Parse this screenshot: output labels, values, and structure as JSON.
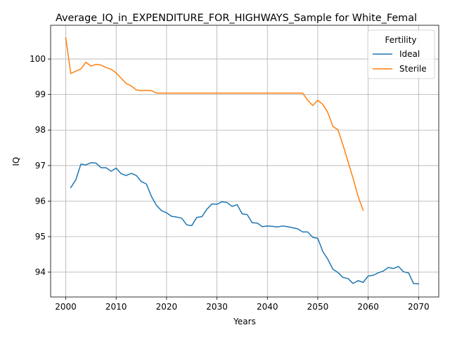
{
  "chart_data": {
    "type": "line",
    "title": "Average_IQ_in_EXPENDITURE_FOR_HIGHWAYS_Sample for White_Femal",
    "xlabel": "Years",
    "ylabel": "IQ",
    "xlim": [
      1997,
      2074
    ],
    "ylim": [
      93.3,
      100.95
    ],
    "xticks": [
      2000,
      2010,
      2020,
      2030,
      2040,
      2050,
      2060,
      2070
    ],
    "yticks": [
      94,
      95,
      96,
      97,
      98,
      99,
      100
    ],
    "grid": true,
    "legend": {
      "title": "Fertility",
      "placement": "top-right"
    },
    "series": [
      {
        "name": "Ideal",
        "color": "#1f77b4",
        "x": [
          2001,
          2002,
          2003,
          2004,
          2005,
          2006,
          2007,
          2008,
          2009,
          2010,
          2011,
          2012,
          2013,
          2014,
          2015,
          2016,
          2017,
          2018,
          2019,
          2020,
          2021,
          2022,
          2023,
          2024,
          2025,
          2026,
          2027,
          2028,
          2029,
          2030,
          2031,
          2032,
          2033,
          2034,
          2035,
          2036,
          2037,
          2038,
          2039,
          2040,
          2041,
          2042,
          2043,
          2044,
          2045,
          2046,
          2047,
          2048,
          2049,
          2050,
          2051,
          2052,
          2053,
          2054,
          2055,
          2056,
          2057,
          2058,
          2059,
          2060,
          2061,
          2062,
          2063,
          2064,
          2065,
          2066,
          2067,
          2068,
          2069,
          2070
        ],
        "values": [
          96.38,
          96.6,
          97.04,
          97.02,
          97.08,
          97.07,
          96.94,
          96.94,
          96.84,
          96.93,
          96.77,
          96.72,
          96.78,
          96.72,
          96.55,
          96.48,
          96.13,
          95.88,
          95.73,
          95.67,
          95.57,
          95.55,
          95.52,
          95.33,
          95.31,
          95.54,
          95.56,
          95.77,
          95.92,
          95.91,
          95.98,
          95.96,
          95.85,
          95.9,
          95.64,
          95.62,
          95.39,
          95.38,
          95.28,
          95.3,
          95.29,
          95.27,
          95.3,
          95.28,
          95.25,
          95.22,
          95.13,
          95.13,
          94.98,
          94.95,
          94.58,
          94.36,
          94.08,
          93.99,
          93.85,
          93.82,
          93.68,
          93.76,
          93.71,
          93.89,
          93.91,
          93.98,
          94.03,
          94.13,
          94.1,
          94.16,
          94.01,
          93.98,
          93.68,
          93.67
        ]
      },
      {
        "name": "Sterile",
        "color": "#ff7f0e",
        "x": [
          2000,
          2001,
          2002,
          2003,
          2004,
          2005,
          2006,
          2007,
          2008,
          2009,
          2010,
          2011,
          2012,
          2013,
          2014,
          2015,
          2016,
          2017,
          2018,
          2019,
          2020,
          2021,
          2022,
          2023,
          2024,
          2025,
          2026,
          2027,
          2028,
          2029,
          2030,
          2031,
          2032,
          2033,
          2034,
          2035,
          2036,
          2037,
          2038,
          2039,
          2040,
          2041,
          2042,
          2043,
          2044,
          2045,
          2046,
          2047,
          2048,
          2049,
          2050,
          2051,
          2052,
          2053,
          2054,
          2055,
          2056,
          2057,
          2058,
          2059
        ],
        "values": [
          100.6,
          99.59,
          99.66,
          99.72,
          99.91,
          99.8,
          99.85,
          99.83,
          99.76,
          99.71,
          99.61,
          99.46,
          99.31,
          99.24,
          99.13,
          99.11,
          99.12,
          99.11,
          99.04,
          99.04,
          99.04,
          99.04,
          99.04,
          99.04,
          99.04,
          99.04,
          99.04,
          99.04,
          99.04,
          99.04,
          99.04,
          99.04,
          99.04,
          99.04,
          99.04,
          99.04,
          99.04,
          99.04,
          99.04,
          99.04,
          99.04,
          99.04,
          99.04,
          99.04,
          99.04,
          99.04,
          99.04,
          99.04,
          98.84,
          98.69,
          98.84,
          98.72,
          98.49,
          98.1,
          98.01,
          97.58,
          97.11,
          96.64,
          96.13,
          95.74
        ]
      }
    ]
  }
}
